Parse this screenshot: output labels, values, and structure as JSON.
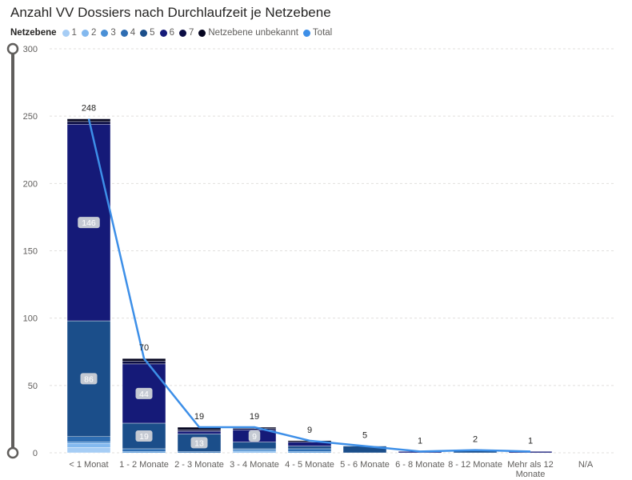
{
  "title": "Anzahl VV Dossiers nach Durchlaufzeit je Netzebene",
  "legend_title": "Netzebene",
  "colors": {
    "1": "#a6cdf5",
    "2": "#83b9ef",
    "3": "#4a90d6",
    "4": "#2e6db2",
    "5": "#1b4e8a",
    "6": "#151a78",
    "7": "#0b0d44",
    "Netzebene unbekannt": "#050520",
    "Total": "#3d8fe8",
    "label_bg": "#c5cad3",
    "grid": "#e1dfdd"
  },
  "chart_data": {
    "type": "bar",
    "stacked": true,
    "title": "Anzahl VV Dossiers nach Durchlaufzeit je Netzebene",
    "xlabel": "",
    "ylabel": "",
    "ylim": [
      0,
      300
    ],
    "yticks": [
      0,
      50,
      100,
      150,
      200,
      250,
      300
    ],
    "categories": [
      "< 1 Monat",
      "1 - 2 Monate",
      "2 - 3 Monate",
      "3 - 4 Monate",
      "4 - 5 Monate",
      "5 - 6 Monate",
      "6 - 8 Monate",
      "8 - 12 Monate",
      "Mehr als 12 Monate",
      "N/A"
    ],
    "category_lines": [
      [
        "< 1 Monat"
      ],
      [
        "1 - 2 Monate"
      ],
      [
        "2 - 3 Monate"
      ],
      [
        "3 - 4 Monate"
      ],
      [
        "4 - 5 Monate"
      ],
      [
        "5 - 6 Monate"
      ],
      [
        "6 - 8 Monate"
      ],
      [
        "8 - 12 Monate"
      ],
      [
        "Mehr als 12",
        "Monate"
      ],
      [
        "N/A"
      ]
    ],
    "series": [
      {
        "name": "1",
        "values": [
          4,
          0,
          0,
          0,
          0,
          0,
          0,
          0,
          0,
          0
        ]
      },
      {
        "name": "2",
        "values": [
          3,
          0,
          0,
          1,
          0,
          0,
          0,
          0,
          0,
          0
        ]
      },
      {
        "name": "3",
        "values": [
          1,
          1,
          0,
          1,
          1,
          0,
          0,
          0,
          0,
          0
        ]
      },
      {
        "name": "4",
        "values": [
          4,
          2,
          1,
          1,
          2,
          0,
          0,
          0,
          0,
          0
        ]
      },
      {
        "name": "5",
        "values": [
          86,
          19,
          13,
          5,
          2,
          5,
          0,
          2,
          0,
          0
        ]
      },
      {
        "name": "6",
        "values": [
          146,
          44,
          2,
          9,
          3,
          0,
          1,
          0,
          1,
          0
        ]
      },
      {
        "name": "7",
        "values": [
          2,
          2,
          1,
          1,
          0,
          0,
          0,
          0,
          0,
          0
        ]
      },
      {
        "name": "Netzebene unbekannt",
        "values": [
          2,
          2,
          2,
          1,
          1,
          0,
          0,
          0,
          0,
          0
        ]
      }
    ],
    "segment_labels": [
      {
        "category": "< 1 Monat",
        "series": "5",
        "text": "86"
      },
      {
        "category": "< 1 Monat",
        "series": "6",
        "text": "146"
      },
      {
        "category": "1 - 2 Monate",
        "series": "5",
        "text": "19"
      },
      {
        "category": "1 - 2 Monate",
        "series": "6",
        "text": "44"
      },
      {
        "category": "2 - 3 Monate",
        "series": "5",
        "text": "13"
      },
      {
        "category": "3 - 4 Monate",
        "series": "6",
        "text": "9"
      }
    ],
    "total_line": {
      "name": "Total",
      "values": [
        248,
        70,
        19,
        19,
        9,
        5,
        1,
        2,
        1,
        null
      ],
      "labels": [
        "248",
        "70",
        "19",
        "19",
        "9",
        "5",
        "1",
        "2",
        "1",
        ""
      ]
    }
  }
}
